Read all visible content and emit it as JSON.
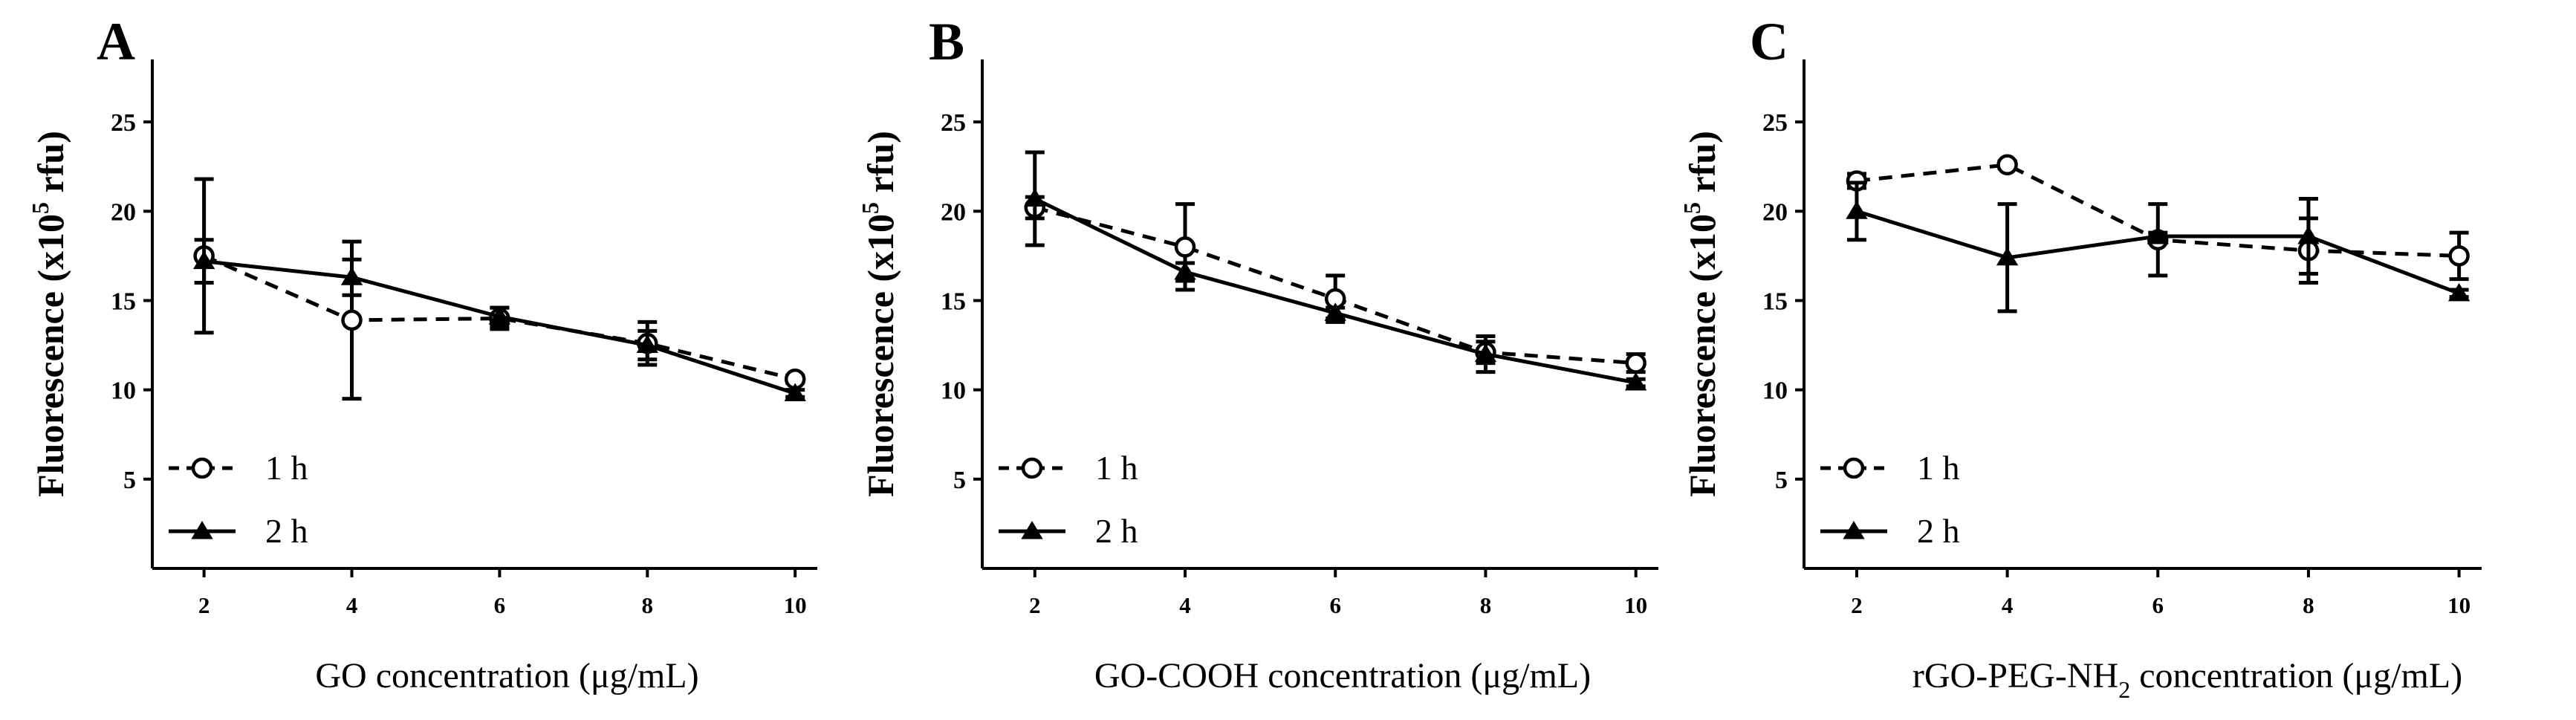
{
  "colors": {
    "ink": "#000000",
    "background": "#ffffff",
    "open_marker_fill": "#ffffff"
  },
  "chart_data": [
    {
      "panel": "A",
      "type": "line",
      "xlabel": "GO concentration  (μg/mL)",
      "xlabel_parts": {
        "base": "GO concentration  (μg/mL)"
      },
      "ylabel_parts": {
        "base": "Fluorescence (x10",
        "sup": "5",
        "rest": " rfu)"
      },
      "x": [
        2,
        4,
        6,
        8,
        10
      ],
      "xticks": [
        2,
        4,
        6,
        8,
        10
      ],
      "xlim": [
        1.3,
        10.3
      ],
      "yticks": [
        5,
        10,
        15,
        20,
        25
      ],
      "ylim": [
        0,
        28.5
      ],
      "legend_position": "bottom-left",
      "series": [
        {
          "name": "1 h",
          "marker": "circle-open",
          "line": "dashed",
          "values": [
            17.5,
            13.9,
            14.0,
            12.6,
            10.6
          ],
          "errors": [
            4.3,
            4.4,
            0.6,
            1.2,
            0.2
          ]
        },
        {
          "name": "2 h",
          "marker": "triangle-filled",
          "line": "solid",
          "values": [
            17.2,
            16.3,
            14.1,
            12.5,
            9.8
          ],
          "errors": [
            1.2,
            1.0,
            0.5,
            0.8,
            0.2
          ]
        }
      ]
    },
    {
      "panel": "B",
      "type": "line",
      "xlabel": "GO-COOH concentration  (μg/mL)",
      "xlabel_parts": {
        "base": "GO-COOH concentration  (μg/mL)"
      },
      "ylabel_parts": {
        "base": "Fluorescence (x10",
        "sup": "5",
        "rest": " rfu)"
      },
      "x": [
        2,
        4,
        6,
        8,
        10
      ],
      "xticks": [
        2,
        4,
        6,
        8,
        10
      ],
      "xlim": [
        1.3,
        10.3
      ],
      "yticks": [
        5,
        10,
        15,
        20,
        25
      ],
      "ylim": [
        0,
        28.5
      ],
      "legend_position": "bottom-left",
      "series": [
        {
          "name": "1 h",
          "marker": "circle-open",
          "line": "dashed",
          "values": [
            20.2,
            18.0,
            15.1,
            12.1,
            11.5
          ],
          "errors": [
            0.6,
            2.4,
            1.3,
            0.6,
            0.5
          ]
        },
        {
          "name": "2 h",
          "marker": "triangle-filled",
          "line": "solid",
          "values": [
            20.7,
            16.6,
            14.3,
            12.0,
            10.4
          ],
          "errors": [
            2.6,
            0.5,
            0.3,
            1.0,
            0.2
          ]
        }
      ]
    },
    {
      "panel": "C",
      "type": "line",
      "xlabel": "rGO-PEG-NH2 concentration  (μg/mL)",
      "xlabel_parts": {
        "base": "rGO-PEG-NH",
        "sub": "2",
        "rest": " concentration  (μg/mL)"
      },
      "ylabel_parts": {
        "base": "Fluorescence (x10",
        "sup": "5",
        "rest": " rfu)"
      },
      "x": [
        2,
        4,
        6,
        8,
        10
      ],
      "xticks": [
        2,
        4,
        6,
        8,
        10
      ],
      "xlim": [
        1.3,
        10.3
      ],
      "yticks": [
        5,
        10,
        15,
        20,
        25
      ],
      "ylim": [
        0,
        28.5
      ],
      "legend_position": "bottom-left",
      "series": [
        {
          "name": "1 h",
          "marker": "circle-open",
          "line": "dashed",
          "values": [
            21.7,
            22.6,
            18.4,
            17.8,
            17.5
          ],
          "errors": [
            0.4,
            0.2,
            2.0,
            1.8,
            1.3
          ]
        },
        {
          "name": "2 h",
          "marker": "triangle-filled",
          "line": "solid",
          "values": [
            20.0,
            17.4,
            18.6,
            18.6,
            15.4
          ],
          "errors": [
            1.6,
            3.0,
            0.2,
            2.1,
            0.2
          ]
        }
      ]
    }
  ]
}
